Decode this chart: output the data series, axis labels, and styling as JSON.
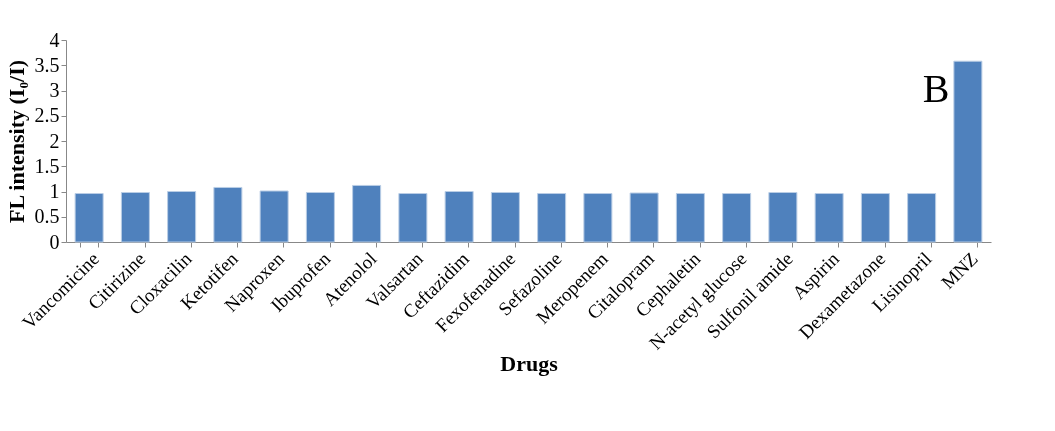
{
  "chart_data": {
    "type": "bar",
    "xlabel": "Drugs",
    "ylabel": "FL intensity  (I₀/I)",
    "categories": [
      "Vancomicine",
      "Citirizine",
      "Cloxacilin",
      "Ketotifen",
      "Naproxen",
      "Ibuprofen",
      "Atenolol",
      "Valsartan",
      "Ceftazidim",
      "Fexofenadine",
      "Sefazoline",
      "Meropenem",
      "Citalopram",
      "Cephaletin",
      "N-acetyl glucose",
      "Sulfonil amide",
      "Aspirin",
      "Dexametazone",
      "Lisinopril",
      "MNZ"
    ],
    "values": [
      0.96,
      0.98,
      1.0,
      1.08,
      1.01,
      0.98,
      1.12,
      0.96,
      1.0,
      0.98,
      0.96,
      0.96,
      0.97,
      0.96,
      0.96,
      0.98,
      0.96,
      0.96,
      0.96,
      3.58
    ],
    "color": "#4f81bd",
    "ylim": [
      0,
      4
    ],
    "yticks": [
      0,
      0.5,
      1,
      1.5,
      2,
      2.5,
      3,
      3.5,
      4
    ],
    "grid": false,
    "annotations": [
      "B"
    ]
  }
}
